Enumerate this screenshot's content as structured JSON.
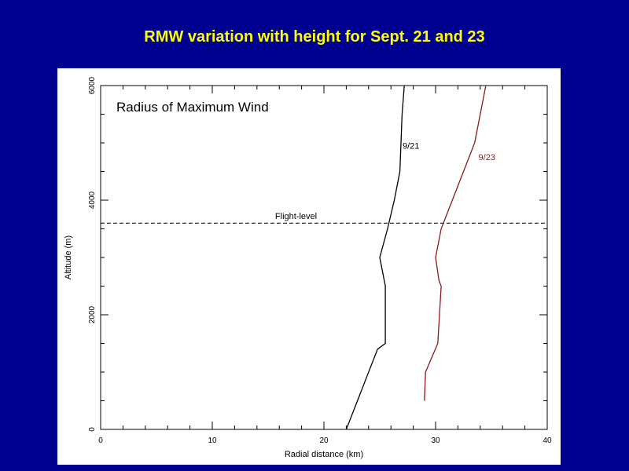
{
  "slide": {
    "title": "RMW variation with height for Sept. 21 and 23"
  },
  "colors": {
    "background": "#000090",
    "title": "#ffff00",
    "series_921": "#000000",
    "series_923": "#8b1a1a"
  },
  "chart_data": {
    "type": "line",
    "title": "Radius of Maximum Wind",
    "xlabel": "Radial distance (km)",
    "ylabel": "Altitude (m)",
    "xlim": [
      0,
      40
    ],
    "ylim": [
      0,
      6000
    ],
    "xticks": [
      0,
      10,
      20,
      30,
      40
    ],
    "yticks": [
      0,
      2000,
      4000,
      6000
    ],
    "grid": false,
    "series": [
      {
        "name": "9/21",
        "color": "#000000",
        "points": [
          [
            22.0,
            0
          ],
          [
            22.5,
            250
          ],
          [
            23.5,
            750
          ],
          [
            24.8,
            1400
          ],
          [
            25.5,
            1500
          ],
          [
            25.5,
            2500
          ],
          [
            25.0,
            3000
          ],
          [
            25.7,
            3500
          ],
          [
            26.3,
            4000
          ],
          [
            26.8,
            4500
          ],
          [
            26.9,
            5000
          ],
          [
            27.0,
            5500
          ],
          [
            27.2,
            6000
          ]
        ]
      },
      {
        "name": "9/23",
        "color": "#8b1a1a",
        "points": [
          [
            29.0,
            500
          ],
          [
            29.1,
            1000
          ],
          [
            30.2,
            1500
          ],
          [
            30.5,
            2500
          ],
          [
            30.3,
            2600
          ],
          [
            30.0,
            3000
          ],
          [
            30.5,
            3500
          ],
          [
            31.5,
            4000
          ],
          [
            32.5,
            4500
          ],
          [
            33.5,
            5000
          ],
          [
            34.0,
            5500
          ],
          [
            34.5,
            6000
          ]
        ]
      }
    ],
    "reference_lines": [
      {
        "label": "Flight-level",
        "y": 3600,
        "style": "dashed"
      }
    ]
  }
}
